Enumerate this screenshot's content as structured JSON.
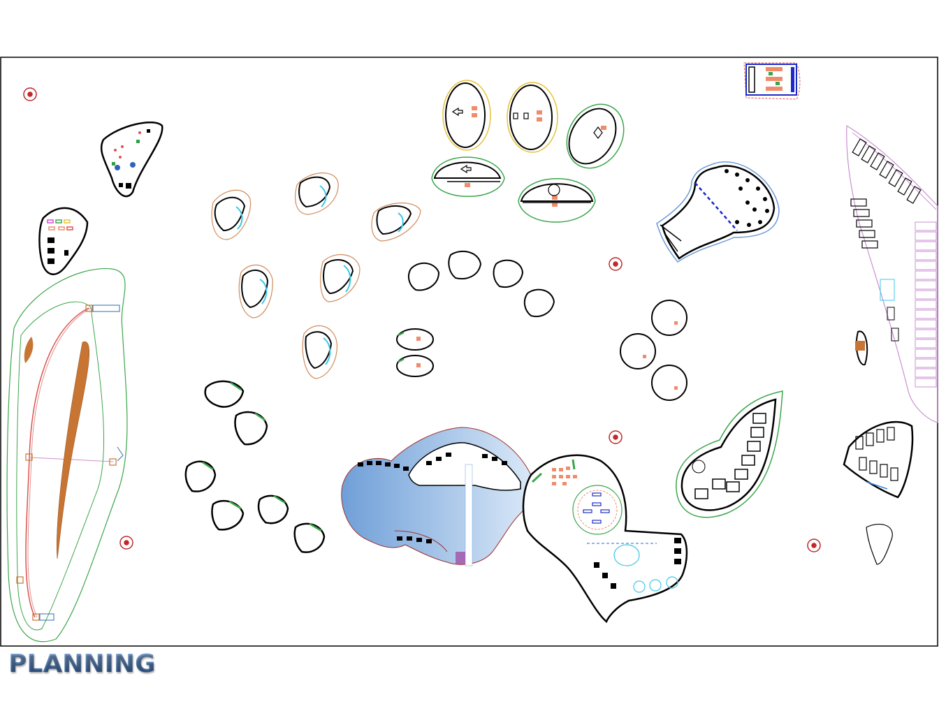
{
  "caption": "PLANNING",
  "colors": {
    "frame": "#000000",
    "pool_dark": "#6f9fd8",
    "pool_light": "#cfe3f7",
    "orange_outline": "#d08a5a",
    "green_outline": "#3aa64a",
    "yellow_outline": "#e6c23a",
    "cyan": "#3cc8e6",
    "salmon": "#f08c6c",
    "brown_fill": "#c87533",
    "pink_outline": "#c98fd0",
    "red_marker": "#c0282a"
  },
  "icons": [
    "compass-marker-icon",
    "pool-icon",
    "parking-icon",
    "villa-icon"
  ]
}
